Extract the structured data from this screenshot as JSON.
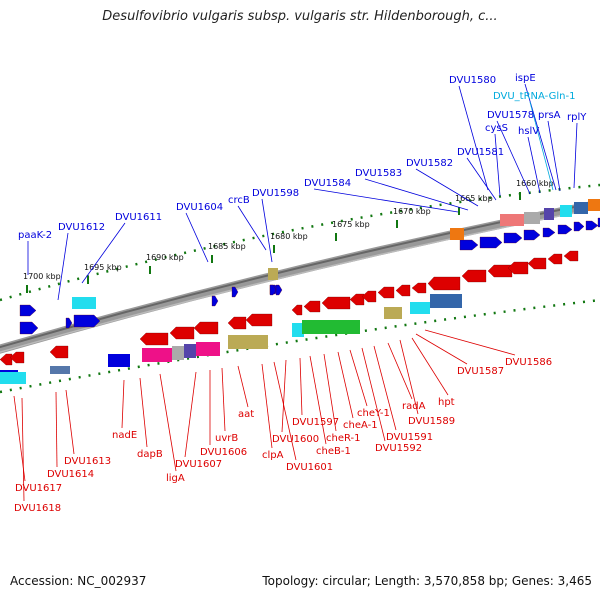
{
  "header": {
    "title": "Desulfovibrio vulgaris subsp. vulgaris str. Hildenborough, c..."
  },
  "footer": {
    "accession": "Accession: NC_002937",
    "topology": "Topology: circular; Length: 3,570,858 bp; Genes: 3,465"
  },
  "scale_labels": [
    "1700 kbp",
    "1695 kbp",
    "1690 kbp",
    "1685 kbp",
    "1680 kbp",
    "1675 kbp",
    "1670 kbp",
    "1665 kbp",
    "1660 kbp"
  ],
  "top_genes": [
    "paaK-2",
    "DVU1612",
    "DVU1611",
    "DVU1604",
    "crcB",
    "DVU1598",
    "DVU1584",
    "DVU1583",
    "DVU1582",
    "DVU1581",
    "DVU1580",
    "cysS",
    "DVU1578",
    "hslV",
    "ispE",
    "prsA",
    "rplY"
  ],
  "trna_gene": "DVU_tRNA-Gln-1",
  "bottom_genes": [
    "DVU1586",
    "DVU1587",
    "hpt",
    "DVU1589",
    "radA",
    "DVU1591",
    "DVU1592",
    "cheY-1",
    "cheA-1",
    "cheR-1",
    "cheB-1",
    "DVU1597",
    "DVU1600",
    "DVU1601",
    "clpA",
    "aat",
    "uvrB",
    "DVU1606",
    "DVU1607",
    "ligA",
    "dapB",
    "nadE",
    "DVU1613",
    "DVU1614",
    "DVU1617",
    "DVU1618"
  ],
  "colors": {
    "forward_gene": "#0000dd",
    "reverse_gene": "#dd0000",
    "trna_label": "#00aadd",
    "cyan_band": "#22ddee",
    "magenta_band": "#ee1188",
    "green_band": "#22bb33",
    "olive_band": "#bbaa55",
    "backbone": "#888888",
    "scale_dots": "#117711"
  }
}
